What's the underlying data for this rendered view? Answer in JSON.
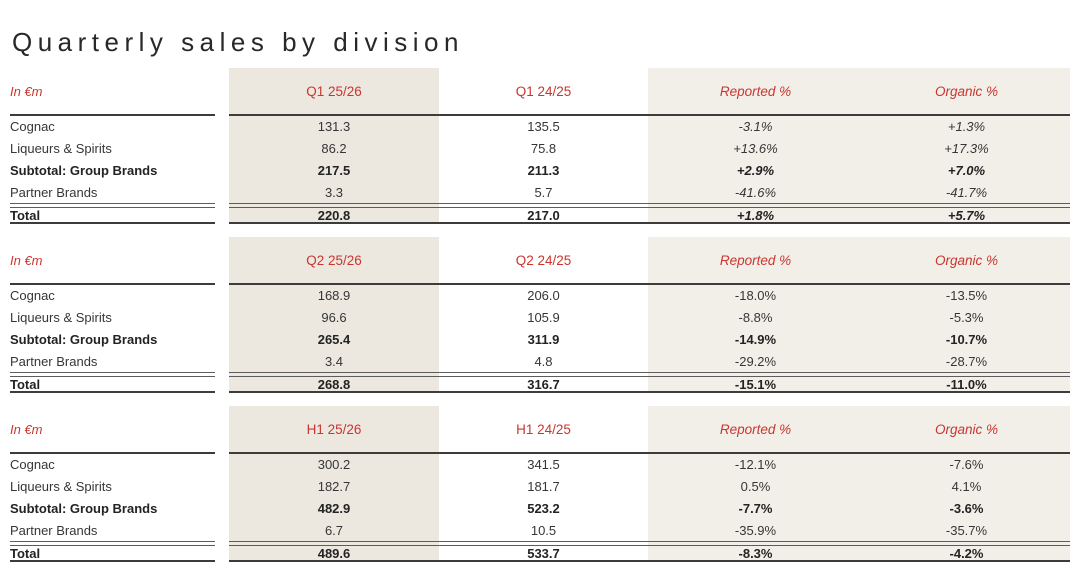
{
  "page_title": "Quarterly sales by division",
  "colors": {
    "accent_red": "#c9362f",
    "current_column_beige": "#ece8e0",
    "percent_band_beige": "#f2efe9",
    "text_dark": "#2e2e2e"
  },
  "tables": [
    {
      "unit": "In €m",
      "columns": [
        "Q1 25/26",
        "Q1 24/25",
        "Reported %",
        "Organic %"
      ],
      "rows": [
        {
          "label": "Cognac",
          "values": [
            "131.3",
            "135.5",
            "-3.1%",
            "+1.3%"
          ]
        },
        {
          "label": "Liqueurs & Spirits",
          "values": [
            "86.2",
            "75.8",
            "+13.6%",
            "+17.3%"
          ]
        },
        {
          "label": "Subtotal: Group Brands",
          "values": [
            "217.5",
            "211.3",
            "+2.9%",
            "+7.0%"
          ]
        },
        {
          "label": "Partner Brands",
          "values": [
            "3.3",
            "5.7",
            "-41.6%",
            "-41.7%"
          ]
        },
        {
          "label": "Total",
          "values": [
            "220.8",
            "217.0",
            "+1.8%",
            "+5.7%"
          ]
        }
      ]
    },
    {
      "unit": "In €m",
      "columns": [
        "Q2 25/26",
        "Q2 24/25",
        "Reported %",
        "Organic %"
      ],
      "rows": [
        {
          "label": "Cognac",
          "values": [
            "168.9",
            "206.0",
            "-18.0%",
            "-13.5%"
          ]
        },
        {
          "label": "Liqueurs & Spirits",
          "values": [
            "96.6",
            "105.9",
            "-8.8%",
            "-5.3%"
          ]
        },
        {
          "label": "Subtotal: Group Brands",
          "values": [
            "265.4",
            "311.9",
            "-14.9%",
            "-10.7%"
          ]
        },
        {
          "label": "Partner Brands",
          "values": [
            "3.4",
            "4.8",
            "-29.2%",
            "-28.7%"
          ]
        },
        {
          "label": "Total",
          "values": [
            "268.8",
            "316.7",
            "-15.1%",
            "-11.0%"
          ]
        }
      ]
    },
    {
      "unit": "In €m",
      "columns": [
        "H1 25/26",
        "H1 24/25",
        "Reported %",
        "Organic %"
      ],
      "rows": [
        {
          "label": "Cognac",
          "values": [
            "300.2",
            "341.5",
            "-12.1%",
            "-7.6%"
          ]
        },
        {
          "label": "Liqueurs & Spirits",
          "values": [
            "182.7",
            "181.7",
            "0.5%",
            "4.1%"
          ]
        },
        {
          "label": "Subtotal: Group Brands",
          "values": [
            "482.9",
            "523.2",
            "-7.7%",
            "-3.6%"
          ]
        },
        {
          "label": "Partner Brands",
          "values": [
            "6.7",
            "10.5",
            "-35.9%",
            "-35.7%"
          ]
        },
        {
          "label": "Total",
          "values": [
            "489.6",
            "533.7",
            "-8.3%",
            "-4.2%"
          ]
        }
      ]
    }
  ]
}
